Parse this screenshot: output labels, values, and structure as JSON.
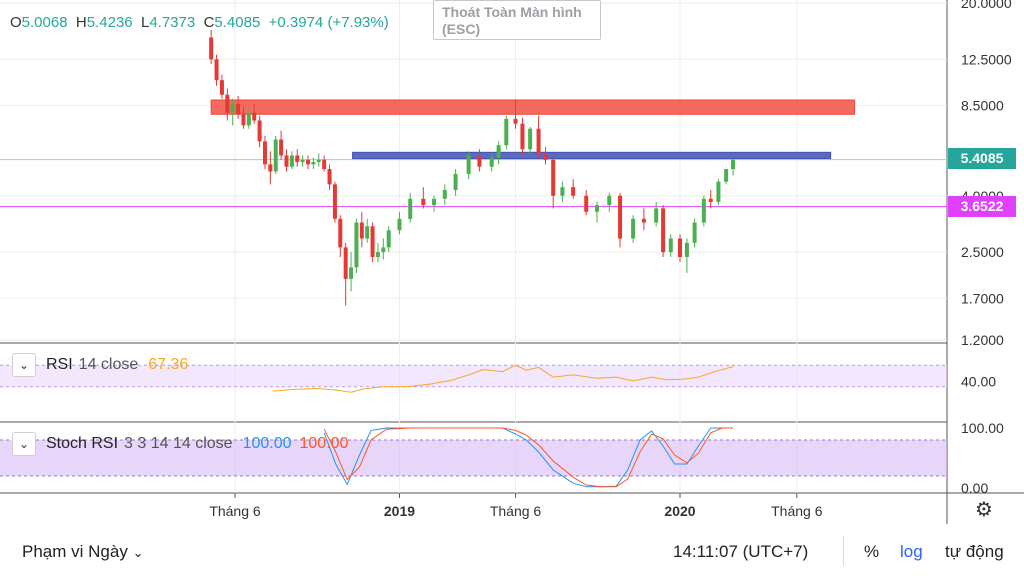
{
  "ohlc": {
    "o_label": "O",
    "o": "5.0068",
    "h_label": "H",
    "h": "5.4236",
    "l_label": "L",
    "l": "4.7373",
    "c_label": "C",
    "c": "5.4085",
    "change": "+0.3974 (+7.93%)"
  },
  "overlay": {
    "esc_text": "Thoát Toàn Màn hình (ESC)"
  },
  "colors": {
    "up": "#26a69a",
    "up_candle": "#4caf50",
    "down": "#e53935",
    "resistance_zone": "#f44336",
    "support_zone": "#3f51b5",
    "level_line": "#e040fb",
    "rsi_line": "#f9a825",
    "rsi_band": "#e8d4fb",
    "stoch_k": "#2196f3",
    "stoch_d": "#ff5722",
    "stoch_band": "#d5b5f5"
  },
  "chart_data": [
    {
      "type": "candlestick",
      "title": "",
      "scale": "log",
      "y_ticks": [
        1.2,
        1.7,
        2.5,
        4.0,
        5.4085,
        8.5,
        12.5,
        20.0
      ],
      "y_tick_labels": [
        "1.2000",
        "1.7000",
        "2.5000",
        "4.0000",
        "5.4085",
        "8.5000",
        "12.5000",
        "20.0000"
      ],
      "x_tick_labels": [
        "Tháng 6",
        "2019",
        "Tháng 6",
        "2020",
        "Tháng 6"
      ],
      "x_tick_dates": [
        "2018-06-01",
        "2019-01-01",
        "2019-06-01",
        "2020-01-01",
        "2020-06-01"
      ],
      "last_price_label": "5.4085",
      "level_label": "3.6522",
      "horizontal_lines": [
        {
          "name": "last-price",
          "value": 5.4085
        },
        {
          "name": "level",
          "value": 3.6522
        }
      ],
      "zones": [
        {
          "name": "resistance-zone",
          "from_date": "2018-05-01",
          "to_date": "2020-08-15",
          "low": 7.9,
          "high": 8.9
        },
        {
          "name": "support-zone",
          "from_date": "2018-11-01",
          "to_date": "2020-07-15",
          "low": 5.45,
          "high": 5.75
        }
      ],
      "candles": [
        {
          "t": "2018-05-01",
          "o": 15.0,
          "h": 16.0,
          "l": 12.0,
          "c": 12.5
        },
        {
          "t": "2018-05-08",
          "o": 12.5,
          "h": 13.0,
          "l": 10.0,
          "c": 10.5
        },
        {
          "t": "2018-05-15",
          "o": 10.5,
          "h": 11.0,
          "l": 9.0,
          "c": 9.3
        },
        {
          "t": "2018-05-22",
          "o": 9.3,
          "h": 9.8,
          "l": 7.5,
          "c": 8.0
        },
        {
          "t": "2018-05-29",
          "o": 8.0,
          "h": 9.0,
          "l": 7.2,
          "c": 8.6
        },
        {
          "t": "2018-06-05",
          "o": 8.6,
          "h": 9.2,
          "l": 7.6,
          "c": 7.9
        },
        {
          "t": "2018-06-12",
          "o": 7.9,
          "h": 8.4,
          "l": 7.0,
          "c": 7.2
        },
        {
          "t": "2018-06-19",
          "o": 7.2,
          "h": 8.3,
          "l": 7.0,
          "c": 8.0
        },
        {
          "t": "2018-06-26",
          "o": 8.0,
          "h": 8.6,
          "l": 7.3,
          "c": 7.5
        },
        {
          "t": "2018-07-03",
          "o": 7.5,
          "h": 7.8,
          "l": 6.0,
          "c": 6.3
        },
        {
          "t": "2018-07-10",
          "o": 6.3,
          "h": 6.6,
          "l": 5.0,
          "c": 5.2
        },
        {
          "t": "2018-07-17",
          "o": 5.2,
          "h": 5.8,
          "l": 4.4,
          "c": 4.9
        },
        {
          "t": "2018-07-24",
          "o": 4.9,
          "h": 6.6,
          "l": 4.8,
          "c": 6.4
        },
        {
          "t": "2018-07-31",
          "o": 6.4,
          "h": 6.9,
          "l": 5.4,
          "c": 5.6
        },
        {
          "t": "2018-08-07",
          "o": 5.6,
          "h": 5.9,
          "l": 4.9,
          "c": 5.1
        },
        {
          "t": "2018-08-14",
          "o": 5.1,
          "h": 5.8,
          "l": 5.0,
          "c": 5.6
        },
        {
          "t": "2018-08-21",
          "o": 5.6,
          "h": 5.9,
          "l": 5.1,
          "c": 5.3
        },
        {
          "t": "2018-08-28",
          "o": 5.3,
          "h": 5.6,
          "l": 5.1,
          "c": 5.4
        },
        {
          "t": "2018-09-04",
          "o": 5.4,
          "h": 5.6,
          "l": 5.0,
          "c": 5.2
        },
        {
          "t": "2018-09-11",
          "o": 5.2,
          "h": 5.5,
          "l": 5.0,
          "c": 5.3
        },
        {
          "t": "2018-09-18",
          "o": 5.3,
          "h": 5.7,
          "l": 5.1,
          "c": 5.4
        },
        {
          "t": "2018-09-25",
          "o": 5.4,
          "h": 5.6,
          "l": 4.9,
          "c": 5.0
        },
        {
          "t": "2018-10-02",
          "o": 5.0,
          "h": 5.2,
          "l": 4.2,
          "c": 4.4
        },
        {
          "t": "2018-10-09",
          "o": 4.4,
          "h": 4.5,
          "l": 3.2,
          "c": 3.3
        },
        {
          "t": "2018-10-16",
          "o": 3.3,
          "h": 3.4,
          "l": 2.4,
          "c": 2.6
        },
        {
          "t": "2018-10-23",
          "o": 2.6,
          "h": 2.7,
          "l": 1.6,
          "c": 2.0
        },
        {
          "t": "2018-10-30",
          "o": 2.0,
          "h": 2.5,
          "l": 1.8,
          "c": 2.2
        },
        {
          "t": "2018-11-06",
          "o": 2.2,
          "h": 3.3,
          "l": 2.1,
          "c": 3.2
        },
        {
          "t": "2018-11-13",
          "o": 3.2,
          "h": 3.5,
          "l": 2.6,
          "c": 2.8
        },
        {
          "t": "2018-11-20",
          "o": 2.8,
          "h": 3.3,
          "l": 2.7,
          "c": 3.1
        },
        {
          "t": "2018-11-27",
          "o": 3.1,
          "h": 3.2,
          "l": 2.3,
          "c": 2.4
        },
        {
          "t": "2018-12-04",
          "o": 2.4,
          "h": 2.7,
          "l": 2.3,
          "c": 2.5
        },
        {
          "t": "2018-12-11",
          "o": 2.5,
          "h": 2.8,
          "l": 2.35,
          "c": 2.6
        },
        {
          "t": "2018-12-18",
          "o": 2.6,
          "h": 3.1,
          "l": 2.5,
          "c": 3.0
        },
        {
          "t": "2019-01-01",
          "o": 3.0,
          "h": 3.5,
          "l": 2.9,
          "c": 3.3
        },
        {
          "t": "2019-01-15",
          "o": 3.3,
          "h": 4.1,
          "l": 3.2,
          "c": 3.9
        },
        {
          "t": "2019-02-01",
          "o": 3.9,
          "h": 4.3,
          "l": 3.6,
          "c": 3.7
        },
        {
          "t": "2019-02-15",
          "o": 3.7,
          "h": 4.0,
          "l": 3.5,
          "c": 3.9
        },
        {
          "t": "2019-03-01",
          "o": 3.9,
          "h": 4.4,
          "l": 3.7,
          "c": 4.2
        },
        {
          "t": "2019-03-15",
          "o": 4.2,
          "h": 5.0,
          "l": 4.0,
          "c": 4.8
        },
        {
          "t": "2019-04-01",
          "o": 4.8,
          "h": 5.8,
          "l": 4.6,
          "c": 5.6
        },
        {
          "t": "2019-04-15",
          "o": 5.6,
          "h": 5.9,
          "l": 4.9,
          "c": 5.1
        },
        {
          "t": "2019-05-01",
          "o": 5.1,
          "h": 5.7,
          "l": 4.9,
          "c": 5.5
        },
        {
          "t": "2019-05-10",
          "o": 5.5,
          "h": 6.3,
          "l": 5.2,
          "c": 6.1
        },
        {
          "t": "2019-05-20",
          "o": 6.1,
          "h": 7.8,
          "l": 5.9,
          "c": 7.6
        },
        {
          "t": "2019-06-01",
          "o": 7.6,
          "h": 8.9,
          "l": 7.0,
          "c": 7.3
        },
        {
          "t": "2019-06-10",
          "o": 7.3,
          "h": 7.7,
          "l": 5.6,
          "c": 5.9
        },
        {
          "t": "2019-06-20",
          "o": 5.9,
          "h": 7.1,
          "l": 5.7,
          "c": 7.0
        },
        {
          "t": "2019-07-01",
          "o": 7.0,
          "h": 7.8,
          "l": 5.5,
          "c": 5.7
        },
        {
          "t": "2019-07-10",
          "o": 5.7,
          "h": 6.0,
          "l": 5.2,
          "c": 5.4
        },
        {
          "t": "2019-07-20",
          "o": 5.4,
          "h": 5.6,
          "l": 3.6,
          "c": 4.0
        },
        {
          "t": "2019-08-01",
          "o": 4.0,
          "h": 4.5,
          "l": 3.8,
          "c": 4.3
        },
        {
          "t": "2019-08-15",
          "o": 4.3,
          "h": 4.6,
          "l": 3.9,
          "c": 4.0
        },
        {
          "t": "2019-09-01",
          "o": 4.0,
          "h": 4.2,
          "l": 3.4,
          "c": 3.5
        },
        {
          "t": "2019-09-15",
          "o": 3.5,
          "h": 3.8,
          "l": 3.2,
          "c": 3.7
        },
        {
          "t": "2019-10-01",
          "o": 3.7,
          "h": 4.1,
          "l": 3.5,
          "c": 4.0
        },
        {
          "t": "2019-10-15",
          "o": 4.0,
          "h": 4.1,
          "l": 2.6,
          "c": 2.8
        },
        {
          "t": "2019-11-01",
          "o": 2.8,
          "h": 3.4,
          "l": 2.7,
          "c": 3.3
        },
        {
          "t": "2019-11-15",
          "o": 3.3,
          "h": 3.6,
          "l": 3.0,
          "c": 3.2
        },
        {
          "t": "2019-12-01",
          "o": 3.2,
          "h": 3.8,
          "l": 3.1,
          "c": 3.6
        },
        {
          "t": "2019-12-10",
          "o": 3.6,
          "h": 3.7,
          "l": 2.4,
          "c": 2.5
        },
        {
          "t": "2019-12-20",
          "o": 2.5,
          "h": 2.9,
          "l": 2.4,
          "c": 2.8
        },
        {
          "t": "2020-01-01",
          "o": 2.8,
          "h": 2.9,
          "l": 2.3,
          "c": 2.4
        },
        {
          "t": "2020-01-10",
          "o": 2.4,
          "h": 2.8,
          "l": 2.1,
          "c": 2.7
        },
        {
          "t": "2020-01-20",
          "o": 2.7,
          "h": 3.3,
          "l": 2.6,
          "c": 3.2
        },
        {
          "t": "2020-02-01",
          "o": 3.2,
          "h": 4.0,
          "l": 3.1,
          "c": 3.9
        },
        {
          "t": "2020-02-10",
          "o": 3.9,
          "h": 4.2,
          "l": 3.6,
          "c": 3.8
        },
        {
          "t": "2020-02-20",
          "o": 3.8,
          "h": 4.6,
          "l": 3.7,
          "c": 4.5
        },
        {
          "t": "2020-03-01",
          "o": 4.5,
          "h": 5.0,
          "l": 4.4,
          "c": 5.0
        },
        {
          "t": "2020-03-10",
          "o": 5.0,
          "h": 5.4236,
          "l": 4.7373,
          "c": 5.4085
        }
      ]
    },
    {
      "type": "line",
      "name": "RSI",
      "params": "14 close",
      "value_label": "67.36",
      "y_tick_labels": [
        "40.00"
      ],
      "band": [
        30,
        70
      ],
      "x": [
        "2018-07-20",
        "2018-08-15",
        "2018-09-15",
        "2018-10-10",
        "2018-10-30",
        "2018-11-15",
        "2018-12-10",
        "2019-01-10",
        "2019-02-10",
        "2019-03-10",
        "2019-04-01",
        "2019-04-20",
        "2019-05-15",
        "2019-06-01",
        "2019-06-15",
        "2019-07-01",
        "2019-07-20",
        "2019-08-15",
        "2019-09-15",
        "2019-10-10",
        "2019-11-01",
        "2019-11-25",
        "2019-12-15",
        "2020-01-05",
        "2020-01-25",
        "2020-02-15",
        "2020-03-10"
      ],
      "values": [
        22,
        25,
        27,
        24,
        20,
        26,
        30,
        30,
        35,
        42,
        52,
        62,
        58,
        70,
        61,
        66,
        48,
        52,
        46,
        48,
        41,
        48,
        43,
        44,
        48,
        58,
        67.36
      ]
    },
    {
      "type": "line",
      "name": "Stoch RSI",
      "params": "3 3 14 14 close",
      "k_label": "100.00",
      "d_label": "100.00",
      "y_tick_labels": [
        "100.00",
        "0.00"
      ],
      "band": [
        20,
        80
      ],
      "series": [
        {
          "name": "K",
          "x": [
            "2018-09-25",
            "2018-10-10",
            "2018-10-25",
            "2018-11-10",
            "2018-11-25",
            "2018-12-15",
            "2019-01-15",
            "2019-02-15",
            "2019-03-15",
            "2019-04-15",
            "2019-05-15",
            "2019-06-01",
            "2019-06-15",
            "2019-07-01",
            "2019-07-20",
            "2019-08-15",
            "2019-09-01",
            "2019-09-20",
            "2019-10-10",
            "2019-10-25",
            "2019-11-10",
            "2019-11-25",
            "2019-12-10",
            "2019-12-25",
            "2020-01-10",
            "2020-01-25",
            "2020-02-10",
            "2020-02-25",
            "2020-03-10"
          ],
          "values": [
            92,
            40,
            6,
            55,
            96,
            100,
            100,
            100,
            100,
            100,
            100,
            90,
            80,
            60,
            30,
            8,
            2,
            2,
            3,
            30,
            80,
            95,
            70,
            40,
            40,
            70,
            100,
            100,
            100
          ]
        },
        {
          "name": "D",
          "x": [
            "2018-09-25",
            "2018-10-10",
            "2018-10-25",
            "2018-11-10",
            "2018-11-25",
            "2018-12-15",
            "2019-01-15",
            "2019-02-15",
            "2019-03-15",
            "2019-04-15",
            "2019-05-15",
            "2019-06-01",
            "2019-06-15",
            "2019-07-01",
            "2019-07-20",
            "2019-08-15",
            "2019-09-01",
            "2019-09-20",
            "2019-10-10",
            "2019-10-25",
            "2019-11-10",
            "2019-11-25",
            "2019-12-10",
            "2019-12-25",
            "2020-01-10",
            "2020-01-25",
            "2020-02-10",
            "2020-02-25",
            "2020-03-10"
          ],
          "values": [
            98,
            60,
            14,
            35,
            80,
            98,
            100,
            100,
            100,
            100,
            100,
            96,
            88,
            72,
            45,
            18,
            5,
            2,
            2,
            15,
            60,
            90,
            82,
            55,
            42,
            58,
            92,
            100,
            100
          ]
        }
      ]
    }
  ],
  "bottom_bar": {
    "range_label": "Phạm vi Ngày",
    "time": "14:11:07 (UTC+7)",
    "percent": "%",
    "log": "log",
    "auto": "tự động"
  }
}
